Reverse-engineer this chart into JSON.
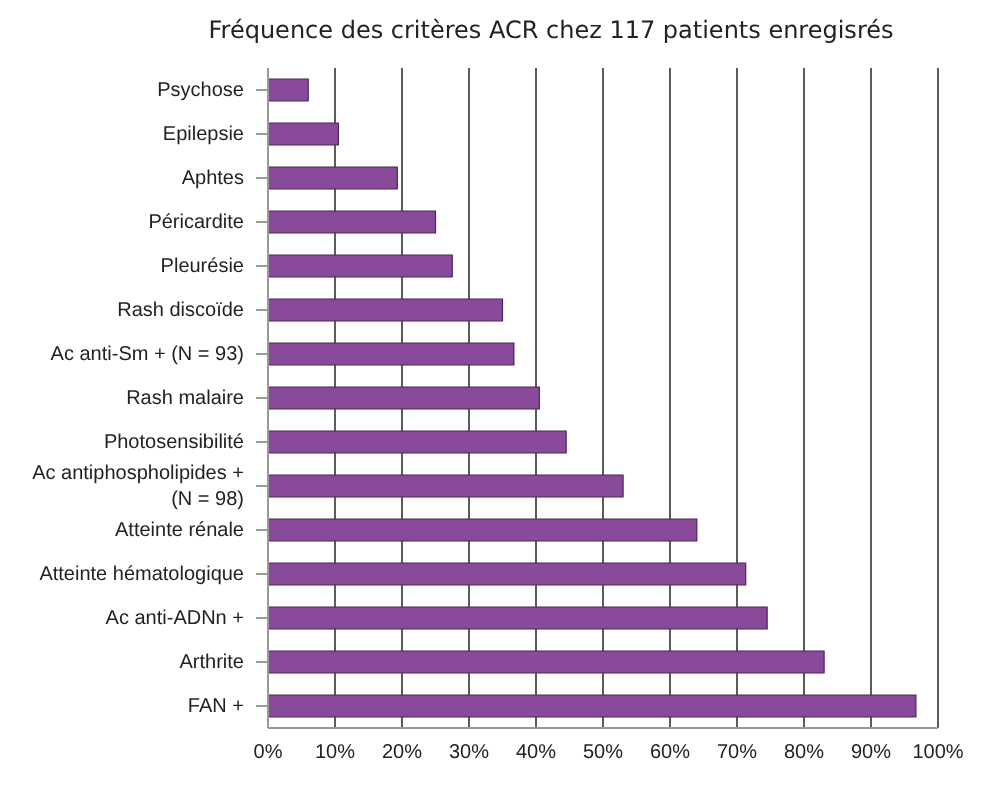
{
  "chart_data": {
    "type": "bar",
    "orientation": "horizontal",
    "title": "Fréquence des critères ACR chez 117 patients enregisrés",
    "categories": [
      "Psychose",
      "Epilepsie",
      "Aphtes",
      "Péricardite",
      "Pleurésie",
      "Rash discoïde",
      "Ac anti-Sm + (N = 93)",
      "Rash malaire",
      "Photosensibilité",
      "Ac antiphospholipides +\n(N = 98)",
      "Atteinte rénale",
      "Atteinte hématologique",
      "Ac anti-ADNn +",
      "Arthrite",
      "FAN +"
    ],
    "values": [
      6,
      10.5,
      19.3,
      25,
      27.5,
      35,
      36.7,
      40.5,
      44.5,
      53,
      64,
      71.3,
      74.5,
      83,
      96.7
    ],
    "color": "#8a4a9a",
    "xlim": [
      0,
      100
    ],
    "xticks": [
      {
        "value": 0,
        "label": "0%"
      },
      {
        "value": 10,
        "label": "10%"
      },
      {
        "value": 20,
        "label": "20%"
      },
      {
        "value": 30,
        "label": "30%"
      },
      {
        "value": 40,
        "label": "40%"
      },
      {
        "value": 50,
        "label": "50%"
      },
      {
        "value": 60,
        "label": "60%"
      },
      {
        "value": 70,
        "label": "70%"
      },
      {
        "value": 80,
        "label": "80%"
      },
      {
        "value": 90,
        "label": "90%"
      },
      {
        "value": 100,
        "label": "100%"
      }
    ],
    "grid": "x",
    "legend": false
  }
}
